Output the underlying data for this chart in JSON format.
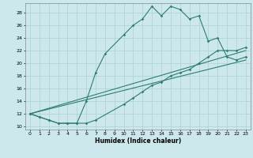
{
  "xlabel": "Humidex (Indice chaleur)",
  "bg_color": "#cce8ec",
  "grid_color": "#afd4d8",
  "line_color": "#2e7d6e",
  "xlim": [
    -0.5,
    23.5
  ],
  "ylim": [
    9.5,
    29.5
  ],
  "yticks": [
    10,
    12,
    14,
    16,
    18,
    20,
    22,
    24,
    26,
    28
  ],
  "xticks": [
    0,
    1,
    2,
    3,
    4,
    5,
    6,
    7,
    8,
    9,
    10,
    11,
    12,
    13,
    14,
    15,
    16,
    17,
    18,
    19,
    20,
    21,
    22,
    23
  ],
  "curve1_x": [
    0,
    1,
    2,
    3,
    4,
    5,
    6,
    7,
    8,
    10,
    11,
    12,
    13,
    14,
    15,
    16,
    17,
    18,
    19,
    20,
    21,
    22,
    23
  ],
  "curve1_y": [
    12,
    11.5,
    11,
    10.5,
    10.5,
    10.5,
    14,
    18.5,
    21.5,
    24.5,
    26,
    27,
    29,
    27.5,
    29,
    28.5,
    27,
    27.5,
    23.5,
    24,
    21,
    20.5,
    21
  ],
  "curve2_x": [
    0,
    1,
    2,
    3,
    4,
    5,
    6,
    7,
    10,
    11,
    12,
    13,
    14,
    15,
    16,
    17,
    18,
    19,
    20,
    21,
    22,
    23
  ],
  "curve2_y": [
    12,
    11.5,
    11,
    10.5,
    10.5,
    10.5,
    10.5,
    11,
    13.5,
    14.5,
    15.5,
    16.5,
    17,
    18,
    18.5,
    19,
    20,
    21,
    22,
    22,
    22,
    22.5
  ],
  "line1_x": [
    0,
    23
  ],
  "line1_y": [
    12,
    20.5
  ],
  "line2_x": [
    0,
    23
  ],
  "line2_y": [
    12,
    22
  ]
}
